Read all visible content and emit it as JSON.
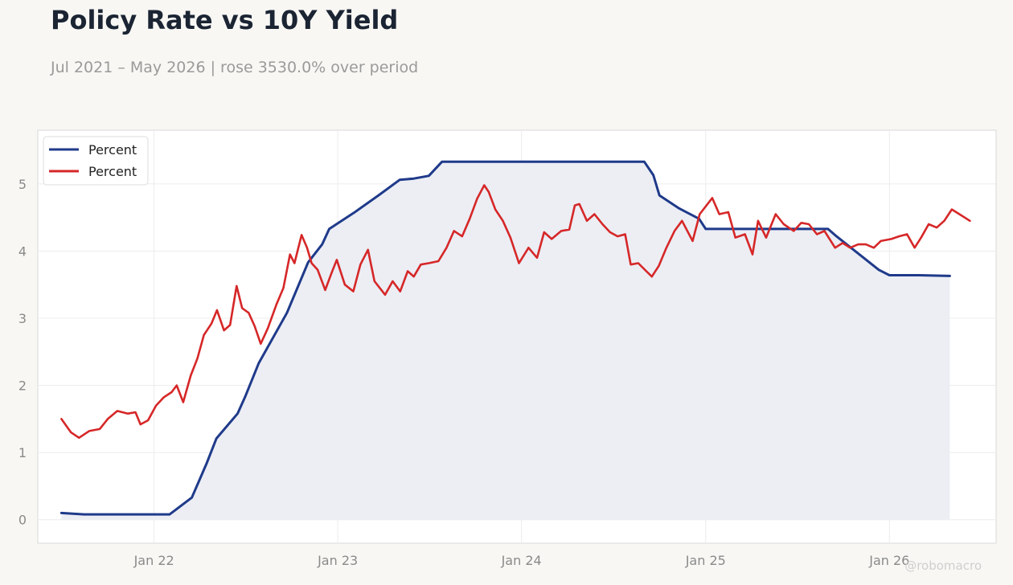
{
  "header": {
    "title": "Policy Rate vs 10Y Yield",
    "subtitle": "Jul 2021 – May 2026 | rose 3530.0% over period"
  },
  "watermark": "@robomacro",
  "colors": {
    "policy": "#1f3a8a",
    "yield": "#d62728",
    "fill": "#eceef4",
    "grid": "#ececec",
    "frame": "#d9d9d9",
    "plot_bg": "#ffffff",
    "page_bg": "#f8f7f4"
  },
  "chart_data": {
    "type": "line",
    "title": "Policy Rate vs 10Y Yield",
    "xlabel": "",
    "ylabel": "",
    "x_type": "date",
    "xlim": [
      "2021-05-15",
      "2026-08-01"
    ],
    "ylim": [
      -0.35,
      5.8
    ],
    "y_ticks": [
      0,
      1,
      2,
      3,
      4,
      5
    ],
    "x_ticks": [
      {
        "date": "2022-01-01",
        "label": "Jan 22"
      },
      {
        "date": "2023-01-01",
        "label": "Jan 23"
      },
      {
        "date": "2024-01-01",
        "label": "Jan 24"
      },
      {
        "date": "2025-01-01",
        "label": "Jan 25"
      },
      {
        "date": "2026-01-01",
        "label": "Jan 26"
      }
    ],
    "grid": true,
    "legend_position": "top-left",
    "series": [
      {
        "name": "Percent",
        "role": "policy",
        "filled": true,
        "points": [
          [
            "2021-07-01",
            0.1
          ],
          [
            "2021-08-15",
            0.08
          ],
          [
            "2021-12-01",
            0.08
          ],
          [
            "2022-02-01",
            0.08
          ],
          [
            "2022-03-17",
            0.33
          ],
          [
            "2022-04-15",
            0.83
          ],
          [
            "2022-05-05",
            1.21
          ],
          [
            "2022-06-16",
            1.58
          ],
          [
            "2022-07-01",
            1.83
          ],
          [
            "2022-07-28",
            2.33
          ],
          [
            "2022-09-22",
            3.08
          ],
          [
            "2022-11-03",
            3.83
          ],
          [
            "2022-12-01",
            4.1
          ],
          [
            "2022-12-15",
            4.33
          ],
          [
            "2023-02-02",
            4.57
          ],
          [
            "2023-03-23",
            4.83
          ],
          [
            "2023-05-04",
            5.06
          ],
          [
            "2023-06-01",
            5.08
          ],
          [
            "2023-07-01",
            5.12
          ],
          [
            "2023-07-27",
            5.33
          ],
          [
            "2024-09-01",
            5.33
          ],
          [
            "2024-09-19",
            5.13
          ],
          [
            "2024-10-01",
            4.83
          ],
          [
            "2024-11-08",
            4.64
          ],
          [
            "2024-12-19",
            4.48
          ],
          [
            "2025-01-01",
            4.33
          ],
          [
            "2025-09-01",
            4.33
          ],
          [
            "2025-09-18",
            4.22
          ],
          [
            "2025-10-30",
            3.97
          ],
          [
            "2025-12-11",
            3.72
          ],
          [
            "2026-01-01",
            3.64
          ],
          [
            "2026-03-01",
            3.64
          ],
          [
            "2026-05-01",
            3.63
          ]
        ]
      },
      {
        "name": "Percent",
        "role": "yield",
        "filled": false,
        "points": [
          [
            "2021-07-01",
            1.5
          ],
          [
            "2021-07-20",
            1.3
          ],
          [
            "2021-08-05",
            1.22
          ],
          [
            "2021-08-25",
            1.32
          ],
          [
            "2021-09-15",
            1.35
          ],
          [
            "2021-10-01",
            1.5
          ],
          [
            "2021-10-20",
            1.62
          ],
          [
            "2021-11-10",
            1.58
          ],
          [
            "2021-11-25",
            1.6
          ],
          [
            "2021-12-05",
            1.42
          ],
          [
            "2021-12-20",
            1.48
          ],
          [
            "2022-01-05",
            1.7
          ],
          [
            "2022-01-20",
            1.82
          ],
          [
            "2022-02-05",
            1.9
          ],
          [
            "2022-02-15",
            2.0
          ],
          [
            "2022-02-28",
            1.75
          ],
          [
            "2022-03-15",
            2.15
          ],
          [
            "2022-03-28",
            2.4
          ],
          [
            "2022-04-10",
            2.75
          ],
          [
            "2022-04-25",
            2.92
          ],
          [
            "2022-05-06",
            3.12
          ],
          [
            "2022-05-20",
            2.82
          ],
          [
            "2022-06-01",
            2.9
          ],
          [
            "2022-06-14",
            3.48
          ],
          [
            "2022-06-25",
            3.15
          ],
          [
            "2022-07-08",
            3.08
          ],
          [
            "2022-07-20",
            2.88
          ],
          [
            "2022-08-01",
            2.62
          ],
          [
            "2022-08-15",
            2.85
          ],
          [
            "2022-09-01",
            3.2
          ],
          [
            "2022-09-15",
            3.45
          ],
          [
            "2022-09-28",
            3.95
          ],
          [
            "2022-10-07",
            3.82
          ],
          [
            "2022-10-21",
            4.24
          ],
          [
            "2022-11-01",
            4.05
          ],
          [
            "2022-11-10",
            3.82
          ],
          [
            "2022-11-22",
            3.72
          ],
          [
            "2022-12-07",
            3.42
          ],
          [
            "2022-12-20",
            3.68
          ],
          [
            "2022-12-30",
            3.87
          ],
          [
            "2023-01-15",
            3.5
          ],
          [
            "2023-02-01",
            3.4
          ],
          [
            "2023-02-15",
            3.8
          ],
          [
            "2023-03-02",
            4.02
          ],
          [
            "2023-03-15",
            3.55
          ],
          [
            "2023-04-05",
            3.35
          ],
          [
            "2023-04-20",
            3.55
          ],
          [
            "2023-05-05",
            3.4
          ],
          [
            "2023-05-20",
            3.7
          ],
          [
            "2023-06-01",
            3.62
          ],
          [
            "2023-06-15",
            3.8
          ],
          [
            "2023-07-01",
            3.82
          ],
          [
            "2023-07-20",
            3.85
          ],
          [
            "2023-08-05",
            4.05
          ],
          [
            "2023-08-20",
            4.3
          ],
          [
            "2023-09-05",
            4.22
          ],
          [
            "2023-09-20",
            4.48
          ],
          [
            "2023-10-05",
            4.78
          ],
          [
            "2023-10-19",
            4.98
          ],
          [
            "2023-10-28",
            4.88
          ],
          [
            "2023-11-10",
            4.62
          ],
          [
            "2023-11-25",
            4.45
          ],
          [
            "2023-12-10",
            4.2
          ],
          [
            "2023-12-27",
            3.82
          ],
          [
            "2024-01-15",
            4.05
          ],
          [
            "2024-02-01",
            3.9
          ],
          [
            "2024-02-15",
            4.28
          ],
          [
            "2024-03-01",
            4.18
          ],
          [
            "2024-03-20",
            4.3
          ],
          [
            "2024-04-05",
            4.32
          ],
          [
            "2024-04-16",
            4.68
          ],
          [
            "2024-04-25",
            4.7
          ],
          [
            "2024-05-10",
            4.45
          ],
          [
            "2024-05-25",
            4.55
          ],
          [
            "2024-06-10",
            4.4
          ],
          [
            "2024-06-25",
            4.28
          ],
          [
            "2024-07-10",
            4.22
          ],
          [
            "2024-07-25",
            4.25
          ],
          [
            "2024-08-05",
            3.8
          ],
          [
            "2024-08-20",
            3.82
          ],
          [
            "2024-09-05",
            3.7
          ],
          [
            "2024-09-16",
            3.62
          ],
          [
            "2024-09-30",
            3.78
          ],
          [
            "2024-10-15",
            4.05
          ],
          [
            "2024-10-31",
            4.3
          ],
          [
            "2024-11-15",
            4.45
          ],
          [
            "2024-12-06",
            4.15
          ],
          [
            "2024-12-20",
            4.55
          ],
          [
            "2025-01-14",
            4.79
          ],
          [
            "2025-01-28",
            4.55
          ],
          [
            "2025-02-15",
            4.58
          ],
          [
            "2025-03-01",
            4.2
          ],
          [
            "2025-03-20",
            4.25
          ],
          [
            "2025-04-04",
            3.95
          ],
          [
            "2025-04-15",
            4.45
          ],
          [
            "2025-05-01",
            4.2
          ],
          [
            "2025-05-20",
            4.55
          ],
          [
            "2025-06-05",
            4.4
          ],
          [
            "2025-06-25",
            4.3
          ],
          [
            "2025-07-10",
            4.42
          ],
          [
            "2025-07-25",
            4.4
          ],
          [
            "2025-08-10",
            4.25
          ],
          [
            "2025-08-25",
            4.3
          ],
          [
            "2025-09-15",
            4.05
          ],
          [
            "2025-09-30",
            4.12
          ],
          [
            "2025-10-15",
            4.05
          ],
          [
            "2025-10-31",
            4.1
          ],
          [
            "2025-11-15",
            4.1
          ],
          [
            "2025-12-01",
            4.05
          ],
          [
            "2025-12-15",
            4.15
          ],
          [
            "2026-01-05",
            4.18
          ],
          [
            "2026-01-20",
            4.22
          ],
          [
            "2026-02-05",
            4.25
          ],
          [
            "2026-02-20",
            4.05
          ],
          [
            "2026-03-05",
            4.2
          ],
          [
            "2026-03-20",
            4.4
          ],
          [
            "2026-04-05",
            4.35
          ],
          [
            "2026-04-20",
            4.45
          ],
          [
            "2026-05-05",
            4.62
          ],
          [
            "2026-05-20",
            4.55
          ],
          [
            "2026-06-10",
            4.45
          ]
        ]
      }
    ]
  }
}
